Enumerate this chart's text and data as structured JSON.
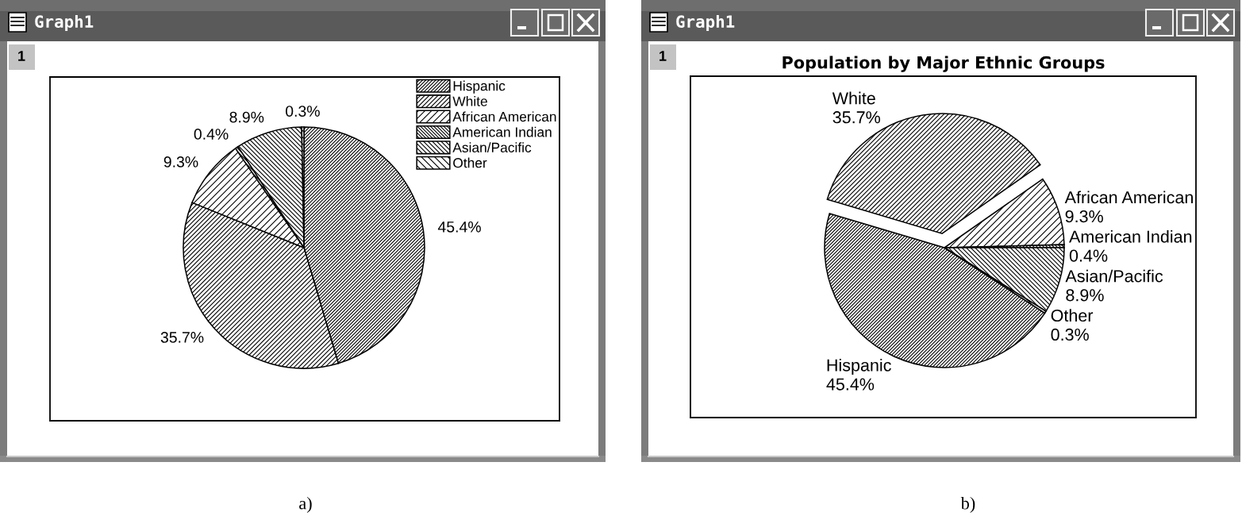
{
  "chart_data": [
    {
      "type": "pie",
      "categories": [
        "Hispanic",
        "White",
        "African American",
        "American Indian",
        "Asian/Pacific",
        "Other"
      ],
      "values": [
        45.4,
        35.7,
        9.3,
        0.4,
        8.9,
        0.3
      ],
      "colors": [
        "#000000",
        "#000000",
        "#000000",
        "#000000",
        "#000000",
        "#000000"
      ],
      "value_labels": [
        "45.4%",
        "35.7%",
        "9.3%",
        "0.4%",
        "8.9%",
        "0.3%"
      ],
      "legend": "top right",
      "annotations": [
        "Graph1",
        "1",
        "a)"
      ]
    },
    {
      "type": "pie",
      "title": "Population by Major Ethnic Groups",
      "categories": [
        "Hispanic",
        "White",
        "African American",
        "American Indian",
        "Asian/Pacific",
        "Other"
      ],
      "values": [
        45.4,
        35.7,
        9.3,
        0.4,
        8.9,
        0.3
      ],
      "colors": [
        "#000000",
        "#000000",
        "#000000",
        "#000000",
        "#000000",
        "#000000"
      ],
      "value_labels": [
        "45.4%",
        "35.7%",
        "9.3%",
        "0.4%",
        "8.9%",
        "0.3%"
      ],
      "legend": false,
      "annotations": [
        "Graph1",
        "1",
        "b)"
      ]
    }
  ]
}
